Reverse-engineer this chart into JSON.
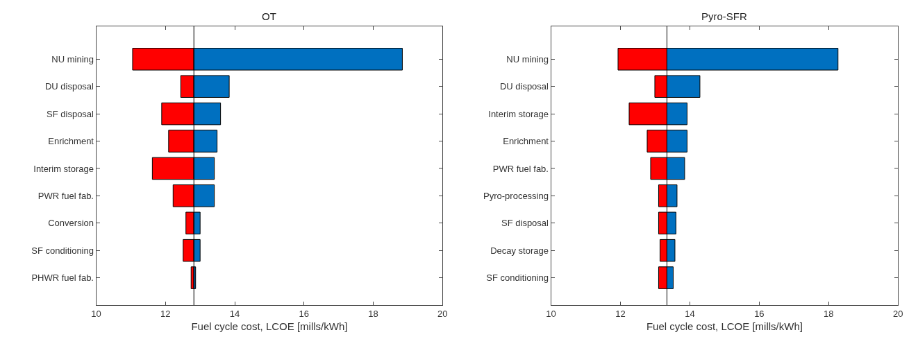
{
  "chart_data": [
    {
      "type": "bar",
      "title": "OT",
      "xlabel": "Fuel cycle cost, LCOE [mills/kWh]",
      "orientation": "horizontal",
      "categories": [
        "NU mining",
        "DU disposal",
        "SF disposal",
        "Enrichment",
        "Interim storage",
        "PWR fuel fab.",
        "Conversion",
        "SF conditioning",
        "PHWR fuel fab."
      ],
      "series": [
        {
          "color": "#ff0000",
          "base": [
            12.82,
            12.82,
            12.82,
            12.82,
            12.82,
            12.82,
            12.82,
            12.82,
            12.82
          ],
          "values": [
            -1.77,
            -0.38,
            -0.93,
            -0.73,
            -1.2,
            -0.6,
            -0.23,
            -0.31,
            -0.08
          ]
        },
        {
          "color": "#0070c0",
          "base": [
            12.82,
            12.82,
            12.82,
            12.82,
            12.82,
            12.82,
            12.82,
            12.82,
            12.82
          ],
          "values": [
            6.02,
            1.02,
            0.77,
            0.67,
            0.59,
            0.59,
            0.18,
            0.18,
            0.05
          ]
        }
      ],
      "ref_lines": [
        {
          "axis": "x",
          "value": 12.82,
          "color": "#000000"
        }
      ],
      "xlim": [
        10,
        20
      ],
      "xticks": [
        10,
        12,
        14,
        16,
        18,
        20
      ]
    },
    {
      "type": "bar",
      "title": "Pyro-SFR",
      "xlabel": "Fuel cycle cost, LCOE [mills/kWh]",
      "orientation": "horizontal",
      "categories": [
        "NU mining",
        "DU disposal",
        "Interim storage",
        "Enrichment",
        "PWR fuel fab.",
        "Pyro-processing",
        "SF disposal",
        "Decay storage",
        "SF conditioning"
      ],
      "series": [
        {
          "color": "#ff0000",
          "base": [
            13.34,
            13.34,
            13.34,
            13.34,
            13.34,
            13.34,
            13.34,
            13.34,
            13.34
          ],
          "values": [
            -1.41,
            -0.35,
            -1.09,
            -0.57,
            -0.47,
            -0.24,
            -0.24,
            -0.2,
            -0.24
          ]
        },
        {
          "color": "#0070c0",
          "base": [
            13.34,
            13.34,
            13.34,
            13.34,
            13.34,
            13.34,
            13.34,
            13.34,
            13.34
          ],
          "values": [
            4.93,
            0.95,
            0.58,
            0.58,
            0.51,
            0.29,
            0.26,
            0.23,
            0.18
          ]
        }
      ],
      "ref_lines": [
        {
          "axis": "x",
          "value": 13.34,
          "color": "#000000"
        }
      ],
      "xlim": [
        10,
        20
      ],
      "xticks": [
        10,
        12,
        14,
        16,
        18,
        20
      ]
    }
  ]
}
